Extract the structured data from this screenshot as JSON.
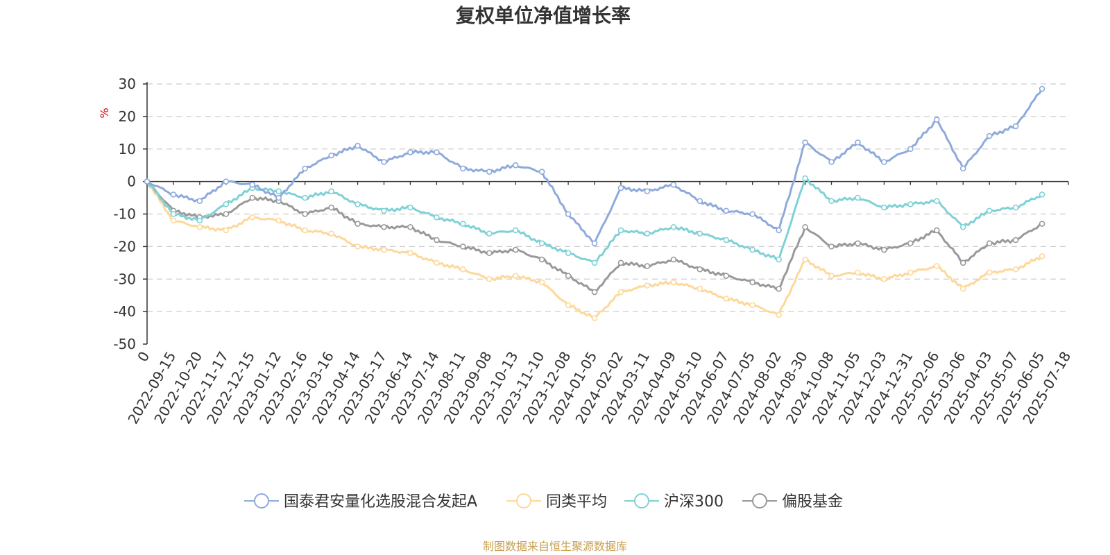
{
  "chart_data": {
    "type": "line",
    "title": "复权单位净值增长率",
    "ylabel": "%",
    "ylabel_color": "#e00000",
    "ylim": [
      -50,
      30
    ],
    "yticks": [
      30,
      20,
      10,
      0,
      -10,
      -20,
      -30,
      -40,
      -50
    ],
    "grid": true,
    "x_first_label": "0",
    "categories": [
      "2022-09-15",
      "2022-10-20",
      "2022-11-17",
      "2022-12-15",
      "2023-01-12",
      "2023-02-16",
      "2023-03-16",
      "2023-04-14",
      "2023-05-17",
      "2023-06-14",
      "2023-07-14",
      "2023-08-11",
      "2023-09-08",
      "2023-10-13",
      "2023-11-10",
      "2023-12-08",
      "2024-01-05",
      "2024-02-02",
      "2024-03-11",
      "2024-04-09",
      "2024-05-10",
      "2024-06-07",
      "2024-07-05",
      "2024-08-02",
      "2024-08-30",
      "2024-10-08",
      "2024-11-05",
      "2024-12-03",
      "2024-12-31",
      "2025-02-06",
      "2025-03-06",
      "2025-04-03",
      "2025-05-07",
      "2025-06-05",
      "2025-07-18"
    ],
    "series": [
      {
        "name": "国泰君安量化选股混合发起A",
        "color": "#8eaadb",
        "values": [
          0,
          -4,
          -6,
          0,
          -1,
          -5,
          4,
          8,
          11,
          6,
          9,
          9,
          4,
          3,
          5,
          3,
          -10,
          -19,
          -2,
          -3,
          -1,
          -6,
          -9,
          -10,
          -15,
          12,
          6,
          12,
          6,
          10,
          19,
          4,
          14,
          17,
          28.5
        ]
      },
      {
        "name": "同类平均",
        "color": "#fdd89a",
        "values": [
          0,
          -12,
          -14,
          -15,
          -11,
          -12,
          -15,
          -16,
          -20,
          -21,
          -22,
          -25,
          -27,
          -30,
          -29,
          -31,
          -38,
          -42,
          -34,
          -32,
          -31,
          -33,
          -36,
          -38,
          -41,
          -24,
          -29,
          -28,
          -30,
          -28,
          -26,
          -33,
          -28,
          -27,
          -23
        ]
      },
      {
        "name": "沪深300",
        "color": "#7fd1d6",
        "values": [
          0,
          -10,
          -12,
          -7,
          -2,
          -3,
          -5,
          -3,
          -7,
          -9,
          -8,
          -11,
          -13,
          -16,
          -15,
          -19,
          -22,
          -25,
          -15,
          -16,
          -14,
          -16,
          -18,
          -21,
          -24,
          1,
          -6,
          -5,
          -8,
          -7,
          -6,
          -14,
          -9,
          -8,
          -4
        ]
      },
      {
        "name": "偏股基金",
        "color": "#999999",
        "values": [
          0,
          -9,
          -11,
          -10,
          -5,
          -6,
          -10,
          -8,
          -13,
          -14,
          -14,
          -18,
          -20,
          -22,
          -21,
          -24,
          -29,
          -34,
          -25,
          -26,
          -24,
          -27,
          -29,
          -31,
          -33,
          -14,
          -20,
          -19,
          -21,
          -19,
          -15,
          -25,
          -19,
          -18,
          -13
        ]
      }
    ]
  },
  "source_text": "制图数据来自恒生聚源数据库",
  "source_color": "#c8a050"
}
